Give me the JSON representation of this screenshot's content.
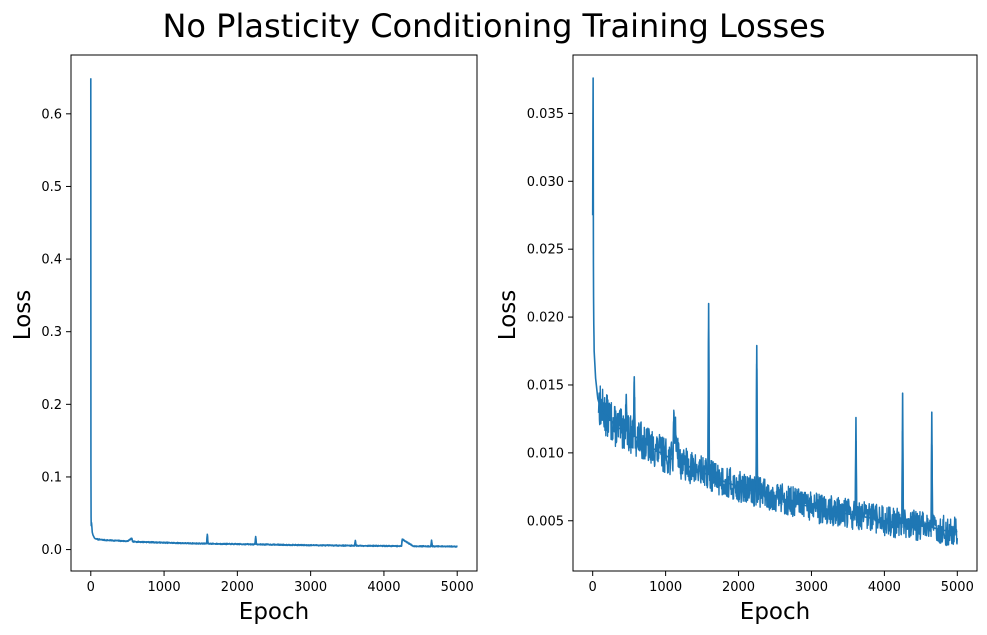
{
  "figure": {
    "title": "No Plasticity Conditioning Training Losses"
  },
  "chart_data": [
    {
      "type": "line",
      "xlabel": "Epoch",
      "ylabel": "Loss",
      "xlim": [
        -270,
        5270
      ],
      "ylim": [
        -0.0295,
        0.681
      ],
      "xticks": [
        0,
        1000,
        2000,
        3000,
        4000,
        5000
      ],
      "xtick_labels": [
        "0",
        "1000",
        "2000",
        "3000",
        "4000",
        "5000"
      ],
      "yticks": [
        0.0,
        0.1,
        0.2,
        0.3,
        0.4,
        0.5,
        0.6
      ],
      "ytick_labels": [
        "0.0",
        "0.1",
        "0.2",
        "0.3",
        "0.4",
        "0.5",
        "0.6"
      ],
      "grid": false,
      "series_color": "#1f77b4",
      "series": [
        {
          "x": [
            0,
            1,
            2,
            4,
            6,
            10,
            15,
            20,
            30,
            40,
            50,
            60,
            80,
            100,
            150,
            200,
            300,
            400,
            500,
            560,
            570,
            600,
            800,
            1000,
            1200,
            1400,
            1580,
            1590,
            1600,
            1800,
            2000,
            2240,
            2250,
            2260,
            2500,
            2800,
            3000,
            3300,
            3600,
            3610,
            3620,
            3900,
            4200,
            4240,
            4250,
            4400,
            4640,
            4650,
            4660,
            4800,
            5000
          ],
          "y": [
            0.649,
            0.36,
            0.12,
            0.045,
            0.033,
            0.037,
            0.031,
            0.024,
            0.02,
            0.018,
            0.016,
            0.015,
            0.0145,
            0.014,
            0.0135,
            0.013,
            0.0125,
            0.012,
            0.0115,
            0.0155,
            0.011,
            0.0108,
            0.0102,
            0.0095,
            0.009,
            0.0085,
            0.0082,
            0.021,
            0.0082,
            0.0078,
            0.0075,
            0.0072,
            0.018,
            0.0072,
            0.0068,
            0.0063,
            0.006,
            0.0057,
            0.0054,
            0.0126,
            0.0054,
            0.0051,
            0.0048,
            0.0048,
            0.0143,
            0.0047,
            0.0045,
            0.013,
            0.0045,
            0.0043,
            0.0042
          ]
        }
      ]
    },
    {
      "type": "line",
      "xlabel": "Epoch",
      "ylabel": "Loss",
      "xlim": [
        -270,
        5270
      ],
      "ylim": [
        0.0013,
        0.0393
      ],
      "xticks": [
        0,
        1000,
        2000,
        3000,
        4000,
        5000
      ],
      "xtick_labels": [
        "0",
        "1000",
        "2000",
        "3000",
        "4000",
        "5000"
      ],
      "yticks": [
        0.005,
        0.01,
        0.015,
        0.02,
        0.025,
        0.03,
        0.035
      ],
      "ytick_labels": [
        "0.005",
        "0.010",
        "0.015",
        "0.020",
        "0.025",
        "0.030",
        "0.035"
      ],
      "grid": false,
      "series_color": "#1f77b4",
      "series": [
        {
          "x": [
            0,
            3,
            6,
            8,
            10,
            12,
            15,
            18,
            20,
            25,
            30,
            35,
            40,
            50,
            60,
            70,
            80,
            100,
            120,
            150,
            200,
            250,
            300,
            400,
            450,
            460,
            470,
            500,
            560,
            570,
            580,
            700,
            800,
            1000,
            1100,
            1110,
            1200,
            1400,
            1580,
            1590,
            1600,
            1800,
            2000,
            2100,
            2240,
            2250,
            2260,
            2500,
            2800,
            3000,
            3300,
            3600,
            3610,
            3620,
            3900,
            4200,
            4240,
            4250,
            4260,
            4400,
            4640,
            4650,
            4660,
            4800,
            5000
          ],
          "y": [
            0.0275,
            0.0335,
            0.0376,
            0.032,
            0.024,
            0.0215,
            0.0195,
            0.0185,
            0.0175,
            0.017,
            0.0165,
            0.016,
            0.0155,
            0.015,
            0.0145,
            0.014,
            0.0138,
            0.0135,
            0.0133,
            0.013,
            0.0127,
            0.0124,
            0.012,
            0.0117,
            0.0116,
            0.0143,
            0.0116,
            0.0114,
            0.0112,
            0.0156,
            0.0112,
            0.0108,
            0.0104,
            0.0098,
            0.0095,
            0.0123,
            0.0093,
            0.0088,
            0.0084,
            0.021,
            0.0084,
            0.0079,
            0.0075,
            0.0073,
            0.0072,
            0.0179,
            0.0072,
            0.0068,
            0.0063,
            0.006,
            0.0057,
            0.0054,
            0.0126,
            0.0054,
            0.0051,
            0.0048,
            0.0048,
            0.0144,
            0.0048,
            0.0047,
            0.0045,
            0.013,
            0.0045,
            0.0043,
            0.0042
          ]
        }
      ]
    }
  ]
}
